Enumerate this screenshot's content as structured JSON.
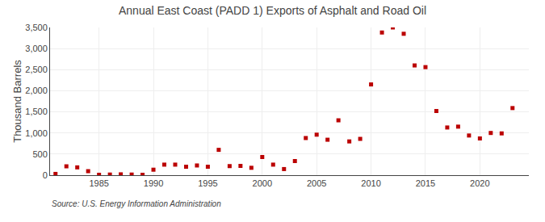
{
  "chart_data": {
    "type": "scatter",
    "title": "Annual East Coast (PADD 1) Exports of Asphalt and Road Oil",
    "ylabel": "Thousand Barrels",
    "annotations": [
      "Source: U.S. Energy Information Administration"
    ],
    "x": [
      1981,
      1982,
      1983,
      1984,
      1985,
      1986,
      1987,
      1988,
      1989,
      1990,
      1991,
      1992,
      1993,
      1994,
      1995,
      1996,
      1997,
      1998,
      1999,
      2000,
      2001,
      2002,
      2003,
      2004,
      2005,
      2006,
      2007,
      2008,
      2009,
      2010,
      2011,
      2012,
      2013,
      2014,
      2015,
      2016,
      2017,
      2018,
      2019,
      2020,
      2021,
      2022,
      2023
    ],
    "values": [
      30,
      210,
      185,
      95,
      10,
      15,
      20,
      15,
      10,
      130,
      250,
      250,
      200,
      230,
      200,
      600,
      215,
      220,
      175,
      430,
      250,
      145,
      335,
      880,
      960,
      840,
      1300,
      800,
      860,
      2150,
      3380,
      3500,
      3350,
      2600,
      2560,
      1520,
      1130,
      1150,
      940,
      870,
      1000,
      990,
      1590
    ],
    "color": "#bb0000",
    "marker": "square",
    "xlim": [
      1980.5,
      2024.5
    ],
    "xticks": [
      1985,
      1990,
      1995,
      2000,
      2005,
      2010,
      2015,
      2020
    ],
    "ylim": [
      0,
      3500
    ],
    "yticks": [
      0,
      500,
      {
        "value": 1000,
        "label": "1,000"
      },
      {
        "value": 1500,
        "label": "1,500"
      },
      {
        "value": 2000,
        "label": "2,000"
      },
      {
        "value": 2500,
        "label": "2,500"
      },
      {
        "value": 3000,
        "label": "3,000"
      },
      {
        "value": 3500,
        "label": "3,500"
      }
    ],
    "grid": true
  }
}
